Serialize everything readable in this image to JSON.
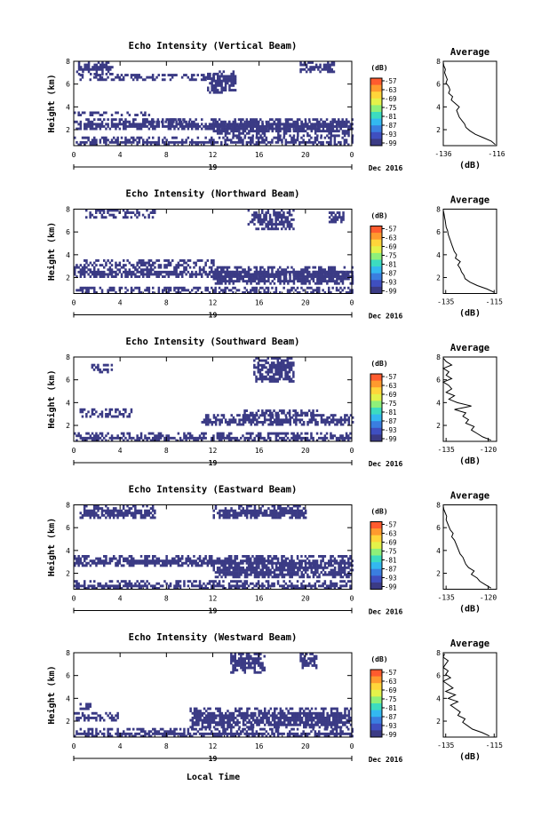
{
  "figure": {
    "xlabel_bottom": "Local Time",
    "date_label": "Dec 2016",
    "day_label": "19"
  },
  "colorbar": {
    "unit": "(dB)",
    "ticks": [
      "-57",
      "-63",
      "-69",
      "-75",
      "-81",
      "-87",
      "-93",
      "-99"
    ],
    "colors": [
      "#ff5b2e",
      "#ff9a2e",
      "#ffd53a",
      "#e4f24a",
      "#8ef07a",
      "#3cdcc0",
      "#33b8f0",
      "#3a7ee0",
      "#3f4fc0",
      "#3b3b85"
    ]
  },
  "chart_data": [
    {
      "type": "heatmap",
      "title": "Echo Intensity (Vertical Beam)",
      "xlabel": "Local Time",
      "ylabel": "Height (km)",
      "xlim": [
        0,
        24
      ],
      "ylim": [
        0.6,
        8
      ],
      "xticks": [
        "0",
        "4",
        "8",
        "12",
        "16",
        "20",
        "0"
      ],
      "yticks": [
        "2",
        "4",
        "6",
        "8"
      ],
      "dominant_value_db": -99,
      "echo_regions": [
        {
          "t": [
            0.2,
            3.3
          ],
          "h": [
            6.9,
            8.0
          ]
        },
        {
          "t": [
            0.5,
            12.0
          ],
          "h": [
            6.3,
            6.9
          ]
        },
        {
          "t": [
            11.5,
            14.0
          ],
          "h": [
            5.2,
            7.2
          ]
        },
        {
          "t": [
            19.5,
            22.5
          ],
          "h": [
            7.0,
            8.0
          ]
        },
        {
          "t": [
            0.0,
            6.5
          ],
          "h": [
            3.2,
            3.6
          ]
        },
        {
          "t": [
            6.0,
            10.5
          ],
          "h": [
            2.6,
            3.0
          ]
        },
        {
          "t": [
            0.0,
            24.0
          ],
          "h": [
            2.0,
            3.0
          ]
        },
        {
          "t": [
            12.0,
            24.0
          ],
          "h": [
            1.5,
            2.8
          ]
        },
        {
          "t": [
            0.0,
            24.0
          ],
          "h": [
            0.6,
            1.4
          ]
        }
      ],
      "profile": {
        "title": "Average",
        "xlabel": "(dB)",
        "xticks": [
          "-136",
          "-116"
        ],
        "xlim": [
          -136,
          -116
        ],
        "ylim": [
          0.6,
          8
        ],
        "yticks": [
          "2",
          "4",
          "6",
          "8"
        ],
        "h": [
          0.7,
          1.0,
          1.3,
          1.6,
          1.9,
          2.2,
          2.5,
          2.8,
          3.1,
          3.4,
          3.7,
          4.0,
          4.3,
          4.6,
          4.9,
          5.2,
          5.5,
          5.8,
          6.1,
          6.4,
          6.7,
          7.0,
          7.3,
          7.6,
          7.9
        ],
        "db": [
          -116.5,
          -118,
          -121,
          -124,
          -126,
          -127.5,
          -128,
          -129,
          -130,
          -130.5,
          -131,
          -130,
          -131.5,
          -133,
          -132.5,
          -134,
          -133.5,
          -134,
          -135,
          -134.5,
          -135,
          -135.5,
          -135.2,
          -135.8,
          -136
        ]
      }
    },
    {
      "type": "heatmap",
      "title": "Echo Intensity (Northward Beam)",
      "xlabel": "Local Time",
      "ylabel": "Height (km)",
      "xlim": [
        0,
        24
      ],
      "ylim": [
        0.6,
        8
      ],
      "xticks": [
        "0",
        "4",
        "8",
        "12",
        "16",
        "20",
        "0"
      ],
      "yticks": [
        "2",
        "4",
        "6",
        "8"
      ],
      "dominant_value_db": -99,
      "echo_regions": [
        {
          "t": [
            1.0,
            7.0
          ],
          "h": [
            7.3,
            8.0
          ]
        },
        {
          "t": [
            15.0,
            19.0
          ],
          "h": [
            6.3,
            8.0
          ]
        },
        {
          "t": [
            22.0,
            23.5
          ],
          "h": [
            6.8,
            7.8
          ]
        },
        {
          "t": [
            0.0,
            12.0
          ],
          "h": [
            3.0,
            3.6
          ]
        },
        {
          "t": [
            0.0,
            24.0
          ],
          "h": [
            2.0,
            3.0
          ]
        },
        {
          "t": [
            12.0,
            24.0
          ],
          "h": [
            1.4,
            2.6
          ]
        },
        {
          "t": [
            0.0,
            24.0
          ],
          "h": [
            0.6,
            1.2
          ]
        }
      ],
      "profile": {
        "title": "Average",
        "xlabel": "(dB)",
        "xticks": [
          "-135",
          "-115"
        ],
        "xlim": [
          -136,
          -114
        ],
        "ylim": [
          0.6,
          8
        ],
        "yticks": [
          "2",
          "4",
          "6",
          "8"
        ],
        "h": [
          0.7,
          1.0,
          1.3,
          1.6,
          1.9,
          2.2,
          2.5,
          2.8,
          3.1,
          3.4,
          3.7,
          4.0,
          4.3,
          4.6,
          4.9,
          5.2,
          5.5,
          5.8,
          6.1,
          6.4,
          6.7,
          7.0,
          7.3,
          7.6,
          7.9
        ],
        "db": [
          -115,
          -118,
          -122,
          -125,
          -127,
          -127.5,
          -128.5,
          -129,
          -130,
          -129,
          -131,
          -130.5,
          -131.5,
          -132,
          -132.5,
          -133,
          -133.5,
          -134,
          -134.2,
          -134.8,
          -135,
          -135.2,
          -135.5,
          -135.7,
          -136
        ]
      }
    },
    {
      "type": "heatmap",
      "title": "Echo Intensity (Southward Beam)",
      "xlabel": "Local Time",
      "ylabel": "Height (km)",
      "xlim": [
        0,
        24
      ],
      "ylim": [
        0.6,
        8
      ],
      "xticks": [
        "0",
        "4",
        "8",
        "12",
        "16",
        "20",
        "0"
      ],
      "yticks": [
        "2",
        "4",
        "6",
        "8"
      ],
      "dominant_value_db": -99,
      "echo_regions": [
        {
          "t": [
            1.5,
            3.2
          ],
          "h": [
            6.6,
            7.4
          ]
        },
        {
          "t": [
            15.5,
            19.0
          ],
          "h": [
            5.8,
            8.0
          ]
        },
        {
          "t": [
            0.5,
            5.0
          ],
          "h": [
            2.8,
            3.5
          ]
        },
        {
          "t": [
            11.0,
            24.0
          ],
          "h": [
            2.0,
            3.0
          ]
        },
        {
          "t": [
            14.5,
            21.0
          ],
          "h": [
            2.8,
            3.4
          ]
        },
        {
          "t": [
            0.0,
            24.0
          ],
          "h": [
            0.6,
            1.4
          ]
        }
      ],
      "profile": {
        "title": "Average",
        "xlabel": "(dB)",
        "xticks": [
          "-135",
          "-120"
        ],
        "xlim": [
          -136,
          -117
        ],
        "ylim": [
          0.6,
          8
        ],
        "yticks": [
          "2",
          "4",
          "6",
          "8"
        ],
        "h": [
          0.7,
          1.0,
          1.3,
          1.6,
          1.9,
          2.2,
          2.5,
          2.8,
          3.1,
          3.4,
          3.7,
          4.0,
          4.3,
          4.6,
          4.9,
          5.2,
          5.5,
          5.8,
          6.1,
          6.4,
          6.7,
          7.0,
          7.3,
          7.6,
          7.9
        ],
        "db": [
          -119,
          -122,
          -124,
          -126,
          -125,
          -128,
          -127,
          -129,
          -128,
          -132,
          -126,
          -131,
          -134,
          -132,
          -135,
          -133,
          -134,
          -136,
          -133,
          -135,
          -134,
          -136,
          -133,
          -135,
          -136
        ]
      }
    },
    {
      "type": "heatmap",
      "title": "Echo Intensity (Eastward Beam)",
      "xlabel": "Local Time",
      "ylabel": "Height (km)",
      "xlim": [
        0,
        24
      ],
      "ylim": [
        0.6,
        8
      ],
      "xticks": [
        "0",
        "4",
        "8",
        "12",
        "16",
        "20",
        "0"
      ],
      "yticks": [
        "2",
        "4",
        "6",
        "8"
      ],
      "dominant_value_db": -99,
      "echo_regions": [
        {
          "t": [
            0.5,
            7.0
          ],
          "h": [
            6.8,
            8.0
          ]
        },
        {
          "t": [
            12.0,
            20.0
          ],
          "h": [
            6.8,
            8.0
          ]
        },
        {
          "t": [
            0.0,
            24.0
          ],
          "h": [
            2.6,
            3.6
          ]
        },
        {
          "t": [
            12.0,
            24.0
          ],
          "h": [
            1.6,
            3.0
          ]
        },
        {
          "t": [
            0.0,
            24.0
          ],
          "h": [
            0.6,
            1.4
          ]
        }
      ],
      "profile": {
        "title": "Average",
        "xlabel": "(dB)",
        "xticks": [
          "-135",
          "-120"
        ],
        "xlim": [
          -136,
          -117
        ],
        "ylim": [
          0.6,
          8
        ],
        "yticks": [
          "2",
          "4",
          "6",
          "8"
        ],
        "h": [
          0.7,
          1.0,
          1.3,
          1.6,
          1.9,
          2.2,
          2.5,
          2.8,
          3.1,
          3.4,
          3.7,
          4.0,
          4.3,
          4.6,
          4.9,
          5.2,
          5.5,
          5.8,
          6.1,
          6.4,
          6.7,
          7.0,
          7.3,
          7.6,
          7.9
        ],
        "db": [
          -119,
          -121,
          -123,
          -124,
          -126,
          -125,
          -127,
          -128,
          -128.5,
          -129,
          -130,
          -130.5,
          -131,
          -131.5,
          -132,
          -133,
          -132.5,
          -133.5,
          -134,
          -134.5,
          -135,
          -134.8,
          -135.3,
          -135.8,
          -136
        ]
      }
    },
    {
      "type": "heatmap",
      "title": "Echo Intensity (Westward Beam)",
      "xlabel": "Local Time",
      "ylabel": "Height (km)",
      "xlim": [
        0,
        24
      ],
      "ylim": [
        0.6,
        8
      ],
      "xticks": [
        "0",
        "4",
        "8",
        "12",
        "16",
        "20",
        "0"
      ],
      "yticks": [
        "2",
        "4",
        "6",
        "8"
      ],
      "dominant_value_db": -99,
      "echo_regions": [
        {
          "t": [
            13.5,
            16.5
          ],
          "h": [
            6.3,
            8.0
          ]
        },
        {
          "t": [
            19.5,
            21.0
          ],
          "h": [
            6.6,
            8.0
          ]
        },
        {
          "t": [
            0.5,
            1.5
          ],
          "h": [
            3.0,
            3.6
          ]
        },
        {
          "t": [
            0.0,
            4.0
          ],
          "h": [
            2.0,
            2.8
          ]
        },
        {
          "t": [
            10.0,
            24.0
          ],
          "h": [
            1.4,
            3.2
          ]
        },
        {
          "t": [
            0.0,
            24.0
          ],
          "h": [
            0.6,
            1.4
          ]
        }
      ],
      "profile": {
        "title": "Average",
        "xlabel": "(dB)",
        "xticks": [
          "-135",
          "-115"
        ],
        "xlim": [
          -136,
          -114
        ],
        "ylim": [
          0.6,
          8
        ],
        "yticks": [
          "2",
          "4",
          "6",
          "8"
        ],
        "h": [
          0.7,
          1.0,
          1.3,
          1.6,
          1.9,
          2.2,
          2.5,
          2.8,
          3.1,
          3.4,
          3.7,
          4.0,
          4.3,
          4.6,
          4.9,
          5.2,
          5.5,
          5.8,
          6.1,
          6.4,
          6.7,
          7.0,
          7.3,
          7.6,
          7.9
        ],
        "db": [
          -117,
          -120,
          -124,
          -126,
          -128,
          -127,
          -130,
          -129,
          -131,
          -133,
          -130,
          -134,
          -131,
          -135,
          -132,
          -134,
          -136,
          -133,
          -135,
          -134,
          -136,
          -135,
          -134,
          -136,
          -135.5
        ]
      }
    }
  ]
}
